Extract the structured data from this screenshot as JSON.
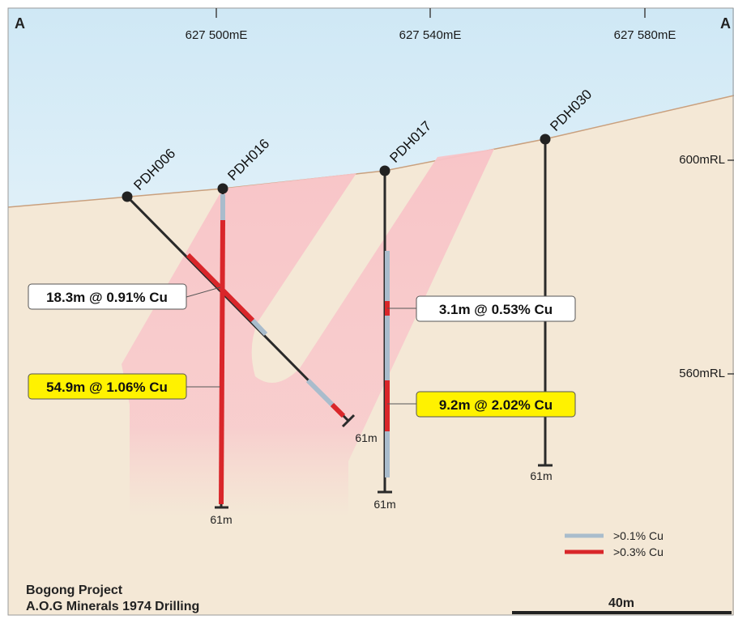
{
  "section": {
    "corner_left": "A",
    "corner_right": "A",
    "easting_labels": [
      "627 500mE",
      "627 540mE",
      "627 580mE"
    ],
    "rl_labels": [
      "600mRL",
      "560mRL"
    ]
  },
  "holes": [
    {
      "id": "PDH006",
      "depth_label": "61m"
    },
    {
      "id": "PDH016",
      "depth_label": "61m"
    },
    {
      "id": "PDH017",
      "depth_label": "61m"
    },
    {
      "id": "PDH030",
      "depth_label": "61m"
    }
  ],
  "intercepts": [
    {
      "text": "18.3m @ 0.91% Cu",
      "highlight": false
    },
    {
      "text": "54.9m @ 1.06% Cu",
      "highlight": true
    },
    {
      "text": "3.1m @ 0.53% Cu",
      "highlight": false
    },
    {
      "text": "9.2m @ 2.02% Cu",
      "highlight": true
    }
  ],
  "legend": [
    {
      "label": ">0.1% Cu",
      "color": "#a9bccc"
    },
    {
      "label": ">0.3% Cu",
      "color": "#d9262a"
    }
  ],
  "title": {
    "line1": "Bogong Project",
    "line2": "A.O.G Minerals 1974 Drilling"
  },
  "scale_bar": {
    "label": "40m"
  },
  "colors": {
    "ground": "#f4e8d6",
    "sky_top": "#cfe8f5",
    "ore_zone": "#f8c9cc",
    "highlight_box": "#fff200",
    "drill_trace": "#2a2a2a"
  }
}
